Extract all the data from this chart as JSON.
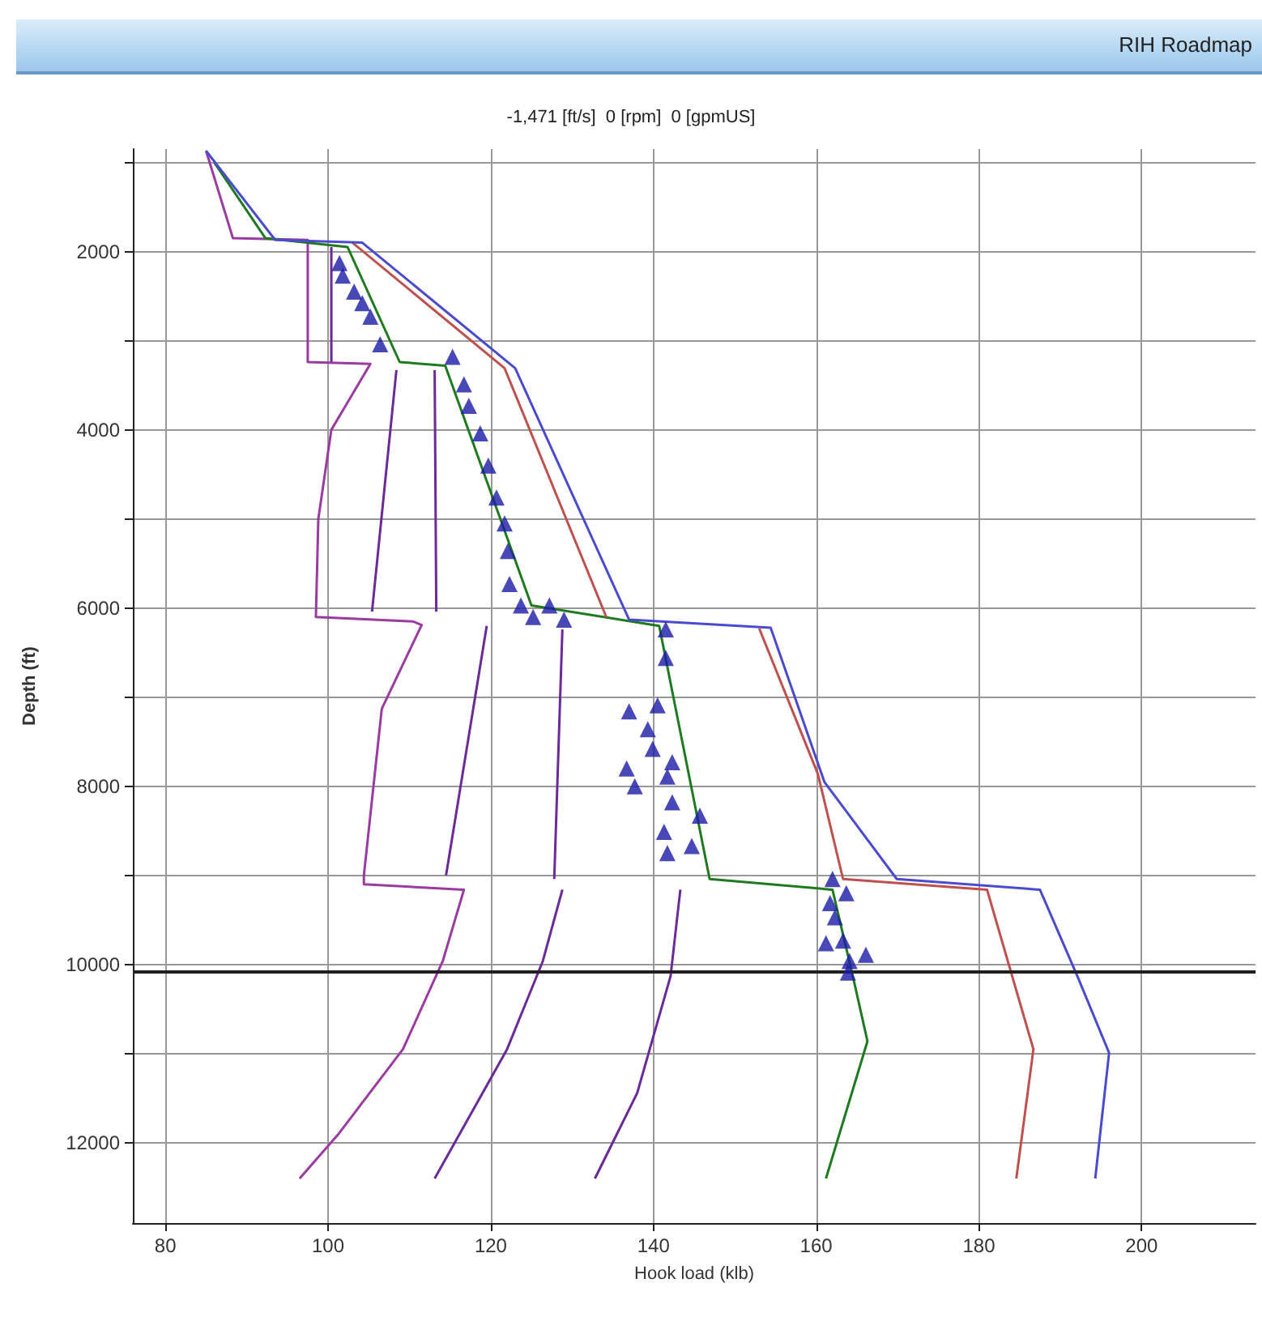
{
  "chart_data": {
    "type": "line",
    "title": "RIH Roadmap",
    "subtitle": "-1,471 [ft/s]  0 [rpm]  0 [gpmUS]",
    "xlabel": "Hook load (klb)",
    "ylabel": "Depth (ft)",
    "xlim": [
      76,
      214
    ],
    "ylim": [
      12900,
      850
    ],
    "xticks": [
      80,
      100,
      120,
      140,
      160,
      180,
      200
    ],
    "yticks": [
      {
        "value": 1000,
        "label": null
      },
      2000,
      {
        "value": 3000,
        "label": null
      },
      4000,
      {
        "value": 5000,
        "label": null
      },
      6000,
      {
        "value": 7000,
        "label": null
      },
      8000,
      {
        "value": 9000,
        "label": null
      },
      10000,
      {
        "value": 11000,
        "label": null
      },
      12000
    ],
    "grid": true,
    "series": [
      {
        "color": "#9b3aa0",
        "x": [
          85,
          88.3,
          97.5,
          97.5,
          105.2,
          100.4,
          98.8,
          98.5,
          110.4,
          111.5,
          106.6,
          104.4,
          104.4,
          116.7,
          114.1,
          109.2,
          101.2,
          96.5
        ],
        "values": [
          870,
          1850,
          1870,
          3240,
          3260,
          4000,
          5000,
          6100,
          6150,
          6190,
          7130,
          9000,
          9100,
          9160,
          9960,
          10950,
          11910,
          12400
        ]
      },
      {
        "color": "#6a2a9a",
        "x": [
          100.4,
          100.4,
          null,
          108.4,
          105.4,
          null,
          119.5,
          114.5,
          null,
          128.8,
          126.4,
          122,
          113.1
        ],
        "values": [
          1950,
          3240,
          null,
          3330,
          6040,
          null,
          6200,
          9000,
          null,
          9160,
          9960,
          10950,
          12400
        ]
      },
      {
        "color": "#6a2a9a",
        "x": [
          113.1,
          113.3,
          null,
          128.8,
          127.8,
          null,
          143.3,
          142.1,
          138,
          132.8
        ],
        "values": [
          3330,
          6040,
          null,
          6240,
          9040,
          null,
          9160,
          10130,
          11440,
          12400
        ]
      },
      {
        "color": "#1e7a1e",
        "x": [
          86,
          92.3,
          102.4,
          108.8,
          114.4,
          125,
          140.7,
          146.9,
          162,
          164.5,
          166.3,
          161.2
        ],
        "values": [
          1000,
          1850,
          1950,
          3240,
          3280,
          5970,
          6200,
          9040,
          9160,
          10130,
          10860,
          12400
        ]
      },
      {
        "color": "#c0504d",
        "x": [
          103,
          121.7,
          134.2,
          null,
          153,
          160.2,
          163.3,
          181,
          186.7,
          184.6
        ],
        "values": [
          1900,
          3310,
          6100,
          null,
          6230,
          7860,
          9040,
          9160,
          10950,
          12400
        ]
      },
      {
        "color": "#4a4ad0",
        "x": [
          85,
          93.5,
          104.2,
          123,
          137,
          154.4,
          161,
          169.9,
          187.5,
          192.1,
          196,
          194.3
        ],
        "values": [
          870,
          1870,
          1900,
          3310,
          6130,
          6220,
          7950,
          9040,
          9160,
          10130,
          10990,
          12400
        ]
      },
      {
        "type": "scatter",
        "marker": "triangle",
        "color": "#1a1aa8",
        "x": [
          101.4,
          101.8,
          103.2,
          104.2,
          105.2,
          106.4,
          115.3,
          116.7,
          117.3,
          118.7,
          119.7,
          120.7,
          121.7,
          122.1,
          122.3,
          123.7,
          125.2,
          127.2,
          129,
          141.5,
          141.5,
          140.5,
          137,
          139.3,
          139.9,
          136.7,
          137.7,
          142.3,
          141.7,
          142.3,
          145.7,
          141.3,
          144.7,
          141.7,
          162,
          163.7,
          161.7,
          162.3,
          161.2,
          163.3,
          164.1,
          166.1,
          163.9
        ],
        "values": [
          2130,
          2270,
          2450,
          2580,
          2730,
          3040,
          3180,
          3490,
          3730,
          4040,
          4400,
          4760,
          5050,
          5360,
          5730,
          5970,
          6100,
          5970,
          6130,
          6240,
          6560,
          7090,
          7160,
          7360,
          7580,
          7800,
          8000,
          7730,
          7890,
          8180,
          8330,
          8510,
          8670,
          8750,
          9040,
          9200,
          9310,
          9470,
          9760,
          9730,
          9960,
          9890,
          10090
        ]
      }
    ],
    "ref_lines": [
      {
        "axis": "y",
        "value": 10080,
        "color": "#202020"
      }
    ]
  }
}
